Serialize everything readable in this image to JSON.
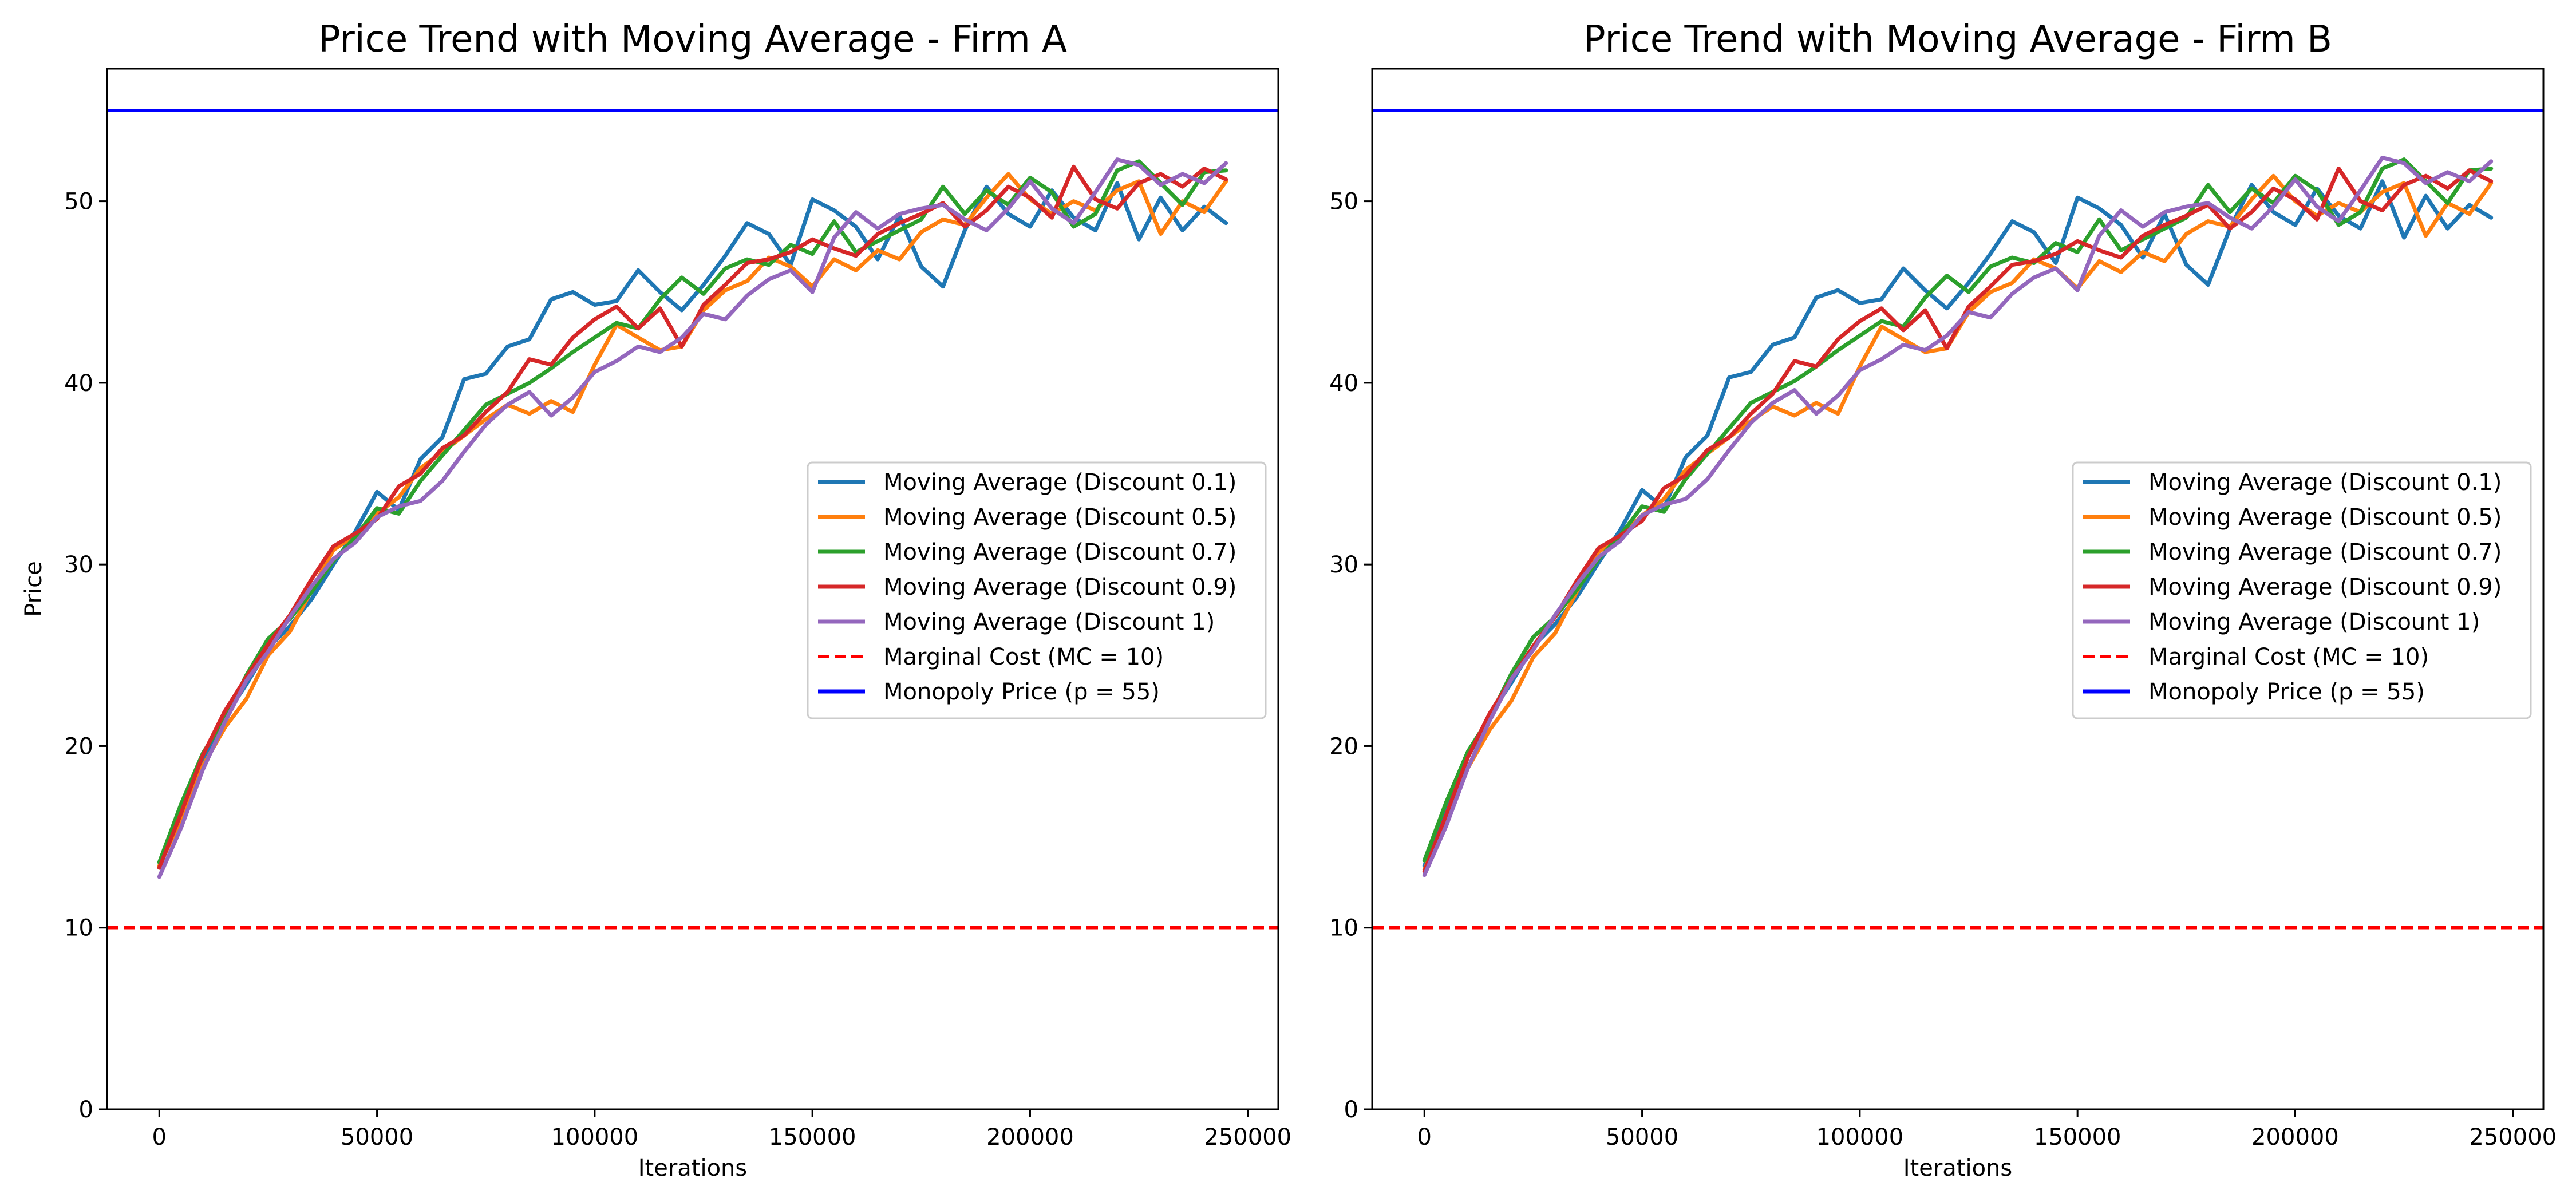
{
  "chart_data": [
    {
      "type": "line",
      "title": "Price Trend with Moving Average - Firm A",
      "xlabel": "Iterations",
      "ylabel": "Price",
      "xlim": [
        -12000,
        257000
      ],
      "ylim": [
        0,
        57.3
      ],
      "xticks": [
        0,
        50000,
        100000,
        150000,
        200000,
        250000
      ],
      "xtick_labels": [
        "0",
        "50000",
        "100000",
        "150000",
        "200000",
        "250000"
      ],
      "yticks": [
        0,
        10,
        20,
        30,
        40,
        50
      ],
      "ytick_labels": [
        "0",
        "10",
        "20",
        "30",
        "40",
        "50"
      ],
      "grid": false,
      "legend_position": "center-right",
      "x": [
        0,
        5000,
        10000,
        15000,
        20000,
        25000,
        30000,
        35000,
        40000,
        45000,
        50000,
        55000,
        60000,
        65000,
        70000,
        75000,
        80000,
        85000,
        90000,
        95000,
        100000,
        105000,
        110000,
        115000,
        120000,
        125000,
        130000,
        135000,
        140000,
        145000,
        150000,
        155000,
        160000,
        165000,
        170000,
        175000,
        180000,
        185000,
        190000,
        195000,
        200000,
        205000,
        210000,
        215000,
        220000,
        225000,
        230000,
        235000,
        240000,
        245000
      ],
      "series": [
        {
          "name": "Moving Average (Discount 0.1)",
          "color": "#1f77b4",
          "style": "solid",
          "values": [
            13.3,
            16.5,
            19.3,
            21.6,
            23.4,
            25.4,
            26.6,
            28.1,
            30.0,
            31.8,
            34.0,
            33.0,
            35.8,
            37.0,
            40.2,
            40.5,
            42.0,
            42.4,
            44.6,
            45.0,
            44.3,
            44.5,
            46.2,
            45.0,
            44.0,
            45.4,
            47.0,
            48.8,
            48.2,
            46.5,
            50.1,
            49.5,
            48.6,
            46.8,
            49.2,
            46.4,
            45.3,
            48.4,
            50.8,
            49.3,
            48.6,
            50.6,
            49.1,
            48.4,
            51.0,
            47.9,
            50.2,
            48.4,
            49.7,
            48.8
          ]
        },
        {
          "name": "Moving Average (Discount 0.5)",
          "color": "#ff7f0e",
          "style": "solid",
          "values": [
            13.4,
            16.0,
            18.9,
            21.0,
            22.6,
            25.0,
            26.3,
            28.6,
            30.8,
            31.6,
            32.8,
            33.7,
            35.3,
            36.2,
            37.1,
            38.0,
            38.8,
            38.3,
            39.0,
            38.4,
            41.0,
            43.2,
            42.5,
            41.8,
            42.0,
            44.0,
            45.1,
            45.6,
            46.9,
            46.4,
            45.3,
            46.8,
            46.2,
            47.3,
            46.8,
            48.3,
            49.0,
            48.7,
            50.2,
            51.5,
            50.1,
            49.3,
            50.0,
            49.5,
            50.6,
            51.1,
            48.2,
            50.0,
            49.4,
            51.1
          ]
        },
        {
          "name": "Moving Average (Discount 0.7)",
          "color": "#2ca02c",
          "style": "solid",
          "values": [
            13.6,
            16.8,
            19.6,
            21.5,
            23.9,
            25.9,
            27.0,
            28.5,
            30.2,
            31.5,
            33.1,
            32.8,
            34.6,
            36.0,
            37.4,
            38.8,
            39.4,
            40.0,
            40.8,
            41.7,
            42.5,
            43.3,
            43.0,
            44.6,
            45.8,
            44.9,
            46.3,
            46.8,
            46.5,
            47.6,
            47.1,
            48.9,
            47.2,
            47.8,
            48.4,
            49.0,
            50.8,
            49.3,
            50.6,
            49.8,
            51.3,
            50.5,
            48.6,
            49.3,
            51.7,
            52.2,
            51.0,
            49.8,
            51.6,
            51.7
          ]
        },
        {
          "name": "Moving Average (Discount 0.9)",
          "color": "#d62728",
          "style": "solid",
          "values": [
            13.3,
            16.3,
            19.5,
            21.9,
            23.8,
            25.6,
            27.2,
            29.2,
            31.0,
            31.7,
            32.5,
            34.3,
            35.0,
            36.4,
            37.1,
            38.4,
            39.5,
            41.3,
            41.0,
            42.5,
            43.5,
            44.2,
            43.0,
            44.1,
            42.0,
            44.3,
            45.4,
            46.6,
            46.8,
            47.2,
            47.9,
            47.4,
            47.0,
            48.2,
            48.8,
            49.3,
            49.9,
            48.6,
            49.5,
            50.8,
            50.2,
            49.1,
            51.9,
            50.1,
            49.6,
            51.0,
            51.5,
            50.8,
            51.8,
            51.2
          ]
        },
        {
          "name": "Moving Average (Discount 1)",
          "color": "#9467bd",
          "style": "solid",
          "values": [
            12.8,
            15.5,
            18.7,
            21.3,
            23.6,
            25.2,
            27.1,
            28.8,
            30.3,
            31.2,
            32.6,
            33.2,
            33.5,
            34.6,
            36.2,
            37.7,
            38.8,
            39.5,
            38.2,
            39.2,
            40.6,
            41.2,
            42.0,
            41.7,
            42.5,
            43.8,
            43.5,
            44.8,
            45.7,
            46.2,
            45.0,
            48.0,
            49.4,
            48.5,
            49.3,
            49.6,
            49.8,
            49.0,
            48.4,
            49.6,
            51.1,
            49.6,
            48.8,
            50.5,
            52.3,
            52.0,
            50.9,
            51.5,
            51.0,
            52.1
          ]
        }
      ],
      "reference_lines": [
        {
          "name": "Marginal Cost (MC = 10)",
          "value": 10,
          "color": "#ff0000",
          "style": "dashed"
        },
        {
          "name": "Monopoly Price (p = 55)",
          "value": 55,
          "color": "#0000ff",
          "style": "solid"
        }
      ]
    },
    {
      "type": "line",
      "title": "Price Trend with Moving Average - Firm B",
      "xlabel": "Iterations",
      "ylabel": "",
      "xlim": [
        -12000,
        257000
      ],
      "ylim": [
        0,
        57.3
      ],
      "xticks": [
        0,
        50000,
        100000,
        150000,
        200000,
        250000
      ],
      "xtick_labels": [
        "0",
        "50000",
        "100000",
        "150000",
        "200000",
        "250000"
      ],
      "yticks": [
        0,
        10,
        20,
        30,
        40,
        50
      ],
      "ytick_labels": [
        "0",
        "10",
        "20",
        "30",
        "40",
        "50"
      ],
      "grid": false,
      "legend_position": "center-right",
      "x": [
        0,
        5000,
        10000,
        15000,
        20000,
        25000,
        30000,
        35000,
        40000,
        45000,
        50000,
        55000,
        60000,
        65000,
        70000,
        75000,
        80000,
        85000,
        90000,
        95000,
        100000,
        105000,
        110000,
        115000,
        120000,
        125000,
        130000,
        135000,
        140000,
        145000,
        150000,
        155000,
        160000,
        165000,
        170000,
        175000,
        180000,
        185000,
        190000,
        195000,
        200000,
        205000,
        210000,
        215000,
        220000,
        225000,
        230000,
        235000,
        240000,
        245000
      ],
      "series": [
        {
          "name": "Moving Average (Discount 0.1)",
          "color": "#1f77b4",
          "style": "solid",
          "values": [
            13.4,
            16.6,
            19.4,
            21.7,
            23.5,
            25.5,
            26.7,
            28.2,
            30.1,
            31.9,
            34.1,
            33.1,
            35.9,
            37.1,
            40.3,
            40.6,
            42.1,
            42.5,
            44.7,
            45.1,
            44.4,
            44.6,
            46.3,
            45.1,
            44.1,
            45.5,
            47.1,
            48.9,
            48.3,
            46.6,
            50.2,
            49.6,
            48.7,
            46.9,
            49.3,
            46.5,
            45.4,
            48.5,
            50.9,
            49.4,
            48.7,
            50.7,
            49.2,
            48.5,
            51.1,
            48.0,
            50.3,
            48.5,
            49.8,
            49.1
          ]
        },
        {
          "name": "Moving Average (Discount 0.5)",
          "color": "#ff7f0e",
          "style": "solid",
          "values": [
            13.2,
            15.9,
            18.8,
            20.9,
            22.5,
            24.9,
            26.2,
            28.5,
            30.7,
            31.5,
            32.7,
            33.6,
            35.2,
            36.1,
            37.0,
            37.9,
            38.7,
            38.2,
            38.9,
            38.3,
            40.9,
            43.1,
            42.4,
            41.7,
            41.9,
            43.9,
            45.0,
            45.5,
            46.8,
            46.3,
            45.2,
            46.7,
            46.1,
            47.2,
            46.7,
            48.2,
            48.9,
            48.6,
            50.1,
            51.4,
            50.0,
            49.2,
            49.9,
            49.4,
            50.5,
            51.0,
            48.1,
            49.9,
            49.3,
            51.0
          ]
        },
        {
          "name": "Moving Average (Discount 0.7)",
          "color": "#2ca02c",
          "style": "solid",
          "values": [
            13.7,
            16.9,
            19.7,
            21.6,
            24.0,
            26.0,
            27.1,
            28.6,
            30.3,
            31.6,
            33.2,
            32.9,
            34.7,
            36.1,
            37.5,
            38.9,
            39.5,
            40.1,
            40.9,
            41.8,
            42.6,
            43.4,
            43.1,
            44.7,
            45.9,
            45.0,
            46.4,
            46.9,
            46.6,
            47.7,
            47.2,
            49.0,
            47.3,
            47.9,
            48.5,
            49.1,
            50.9,
            49.4,
            50.7,
            49.9,
            51.4,
            50.6,
            48.7,
            49.4,
            51.8,
            52.3,
            51.1,
            49.9,
            51.7,
            51.8
          ]
        },
        {
          "name": "Moving Average (Discount 0.9)",
          "color": "#d62728",
          "style": "solid",
          "values": [
            13.1,
            16.2,
            19.4,
            21.8,
            23.7,
            25.5,
            27.1,
            29.1,
            30.9,
            31.6,
            32.4,
            34.2,
            34.9,
            36.3,
            37.0,
            38.3,
            39.4,
            41.2,
            40.9,
            42.4,
            43.4,
            44.1,
            42.9,
            44.0,
            41.9,
            44.2,
            45.3,
            46.5,
            46.7,
            47.1,
            47.8,
            47.3,
            46.9,
            48.1,
            48.7,
            49.2,
            49.8,
            48.5,
            49.4,
            50.7,
            50.1,
            49.0,
            51.8,
            50.0,
            49.5,
            50.9,
            51.4,
            50.7,
            51.7,
            51.1
          ]
        },
        {
          "name": "Moving Average (Discount 1)",
          "color": "#9467bd",
          "style": "solid",
          "values": [
            12.9,
            15.6,
            18.8,
            21.4,
            23.7,
            25.3,
            27.2,
            28.9,
            30.4,
            31.3,
            32.7,
            33.3,
            33.6,
            34.7,
            36.3,
            37.8,
            38.9,
            39.6,
            38.3,
            39.3,
            40.7,
            41.3,
            42.1,
            41.8,
            42.6,
            43.9,
            43.6,
            44.9,
            45.8,
            46.3,
            45.1,
            48.1,
            49.5,
            48.6,
            49.4,
            49.7,
            49.9,
            49.1,
            48.5,
            49.7,
            51.2,
            49.7,
            48.9,
            50.6,
            52.4,
            52.1,
            51.0,
            51.6,
            51.1,
            52.2
          ]
        }
      ],
      "reference_lines": [
        {
          "name": "Marginal Cost (MC = 10)",
          "value": 10,
          "color": "#ff0000",
          "style": "dashed"
        },
        {
          "name": "Monopoly Price (p = 55)",
          "value": 55,
          "color": "#0000ff",
          "style": "solid"
        }
      ]
    }
  ]
}
